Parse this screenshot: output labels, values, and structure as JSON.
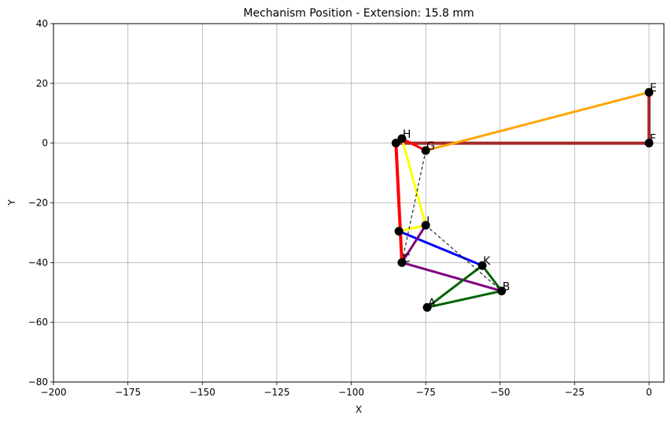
{
  "chart_data": {
    "type": "line",
    "title": "Mechanism Position - Extension: 15.8 mm",
    "xlabel": "X",
    "ylabel": "Y",
    "xlim": [
      -200,
      5
    ],
    "ylim": [
      -80,
      40
    ],
    "xticks": [
      -200,
      -175,
      -150,
      -125,
      -100,
      -75,
      -50,
      -25,
      0
    ],
    "xtick_labels": [
      "−200",
      "−175",
      "−150",
      "−125",
      "−100",
      "−75",
      "−50",
      "−25",
      "0"
    ],
    "yticks": [
      -80,
      -60,
      -40,
      -20,
      0,
      20,
      40
    ],
    "ytick_labels": [
      "−80",
      "−60",
      "−40",
      "−20",
      "0",
      "20",
      "40"
    ],
    "grid": true,
    "points": [
      {
        "label": "A",
        "x": -74.5,
        "y": -55.0
      },
      {
        "label": "B",
        "x": -49.5,
        "y": -49.5
      },
      {
        "label": "C",
        "x": -83.0,
        "y": -40.0
      },
      {
        "label": "",
        "x": -84.0,
        "y": -29.5
      },
      {
        "label": "",
        "x": -85.0,
        "y": 0.0
      },
      {
        "label": "H",
        "x": -83.0,
        "y": 1.5
      },
      {
        "label": "G",
        "x": -75.0,
        "y": -2.5
      },
      {
        "label": "I",
        "x": -75.0,
        "y": -27.5
      },
      {
        "label": "K",
        "x": -56.0,
        "y": -41.0
      },
      {
        "label": "E",
        "x": 0.0,
        "y": 17.0
      },
      {
        "label": "F",
        "x": 0.0,
        "y": 0.0
      }
    ],
    "links": [
      {
        "color": "#a52a2a",
        "width": 4,
        "points": [
          [
            -85.0,
            0.0
          ],
          [
            0.0,
            0.0
          ]
        ]
      },
      {
        "color": "#a52a2a",
        "width": 4,
        "points": [
          [
            0.0,
            0.0
          ],
          [
            0.0,
            17.0
          ]
        ]
      },
      {
        "color": "#ffa500",
        "width": 3,
        "points": [
          [
            0.0,
            17.0
          ],
          [
            -75.0,
            -2.5
          ]
        ]
      },
      {
        "color": "#ff0000",
        "width": 4,
        "points": [
          [
            -85.0,
            0.0
          ],
          [
            -83.0,
            -40.0
          ]
        ]
      },
      {
        "color": "#ff0000",
        "width": 3,
        "points": [
          [
            -83.0,
            1.5
          ],
          [
            -75.0,
            -2.5
          ]
        ]
      },
      {
        "color": "#ffff00",
        "width": 3,
        "points": [
          [
            -83.0,
            1.5
          ],
          [
            -75.0,
            -27.5
          ]
        ]
      },
      {
        "color": "#ffff00",
        "width": 3,
        "points": [
          [
            -84.0,
            -29.5
          ],
          [
            -75.0,
            -27.5
          ]
        ]
      },
      {
        "color": "#0000ff",
        "width": 3,
        "points": [
          [
            -84.0,
            -29.5
          ],
          [
            -56.0,
            -41.0
          ]
        ]
      },
      {
        "color": "#800080",
        "width": 3,
        "points": [
          [
            -83.0,
            -40.0
          ],
          [
            -75.0,
            -27.5
          ]
        ]
      },
      {
        "color": "#800080",
        "width": 3,
        "points": [
          [
            -83.0,
            -40.0
          ],
          [
            -49.5,
            -49.5
          ]
        ]
      },
      {
        "color": "#006400",
        "width": 3,
        "points": [
          [
            -74.5,
            -55.0
          ],
          [
            -56.0,
            -41.0
          ],
          [
            -49.5,
            -49.5
          ],
          [
            -74.5,
            -55.0
          ]
        ]
      }
    ],
    "dashed_lines": [
      {
        "color": "#000000",
        "points": [
          [
            -75.0,
            -2.5
          ],
          [
            -83.0,
            -40.0
          ]
        ]
      },
      {
        "color": "#000000",
        "points": [
          [
            -75.0,
            -27.5
          ],
          [
            -49.5,
            -49.5
          ]
        ]
      }
    ]
  }
}
